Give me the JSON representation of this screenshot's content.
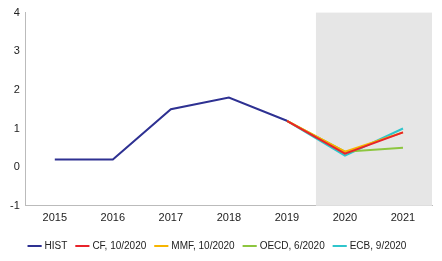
{
  "chart_data": {
    "type": "line",
    "categories": [
      "2015",
      "2016",
      "2017",
      "2018",
      "2019",
      "2020",
      "2021"
    ],
    "series": [
      {
        "name": "HIST",
        "color": "#2e3192",
        "values": [
          0.2,
          0.2,
          1.5,
          1.8,
          1.2,
          null,
          null
        ]
      },
      {
        "name": "CF, 10/2020",
        "color": "#e8232a",
        "values": [
          null,
          null,
          null,
          null,
          1.2,
          0.35,
          0.9
        ]
      },
      {
        "name": "MMF, 10/2020",
        "color": "#f7b500",
        "values": [
          null,
          null,
          null,
          null,
          1.2,
          0.4,
          0.9
        ]
      },
      {
        "name": "OECD, 6/2020",
        "color": "#8dc63f",
        "values": [
          null,
          null,
          null,
          null,
          1.2,
          0.4,
          0.5
        ]
      },
      {
        "name": "ECB, 9/2020",
        "color": "#2fc5cc",
        "values": [
          null,
          null,
          null,
          null,
          1.2,
          0.3,
          1.0
        ]
      }
    ],
    "ylim": [
      -1,
      4
    ],
    "yticks": [
      -1,
      0,
      1,
      2,
      3,
      4
    ],
    "grid": false,
    "legend": "bottom"
  }
}
